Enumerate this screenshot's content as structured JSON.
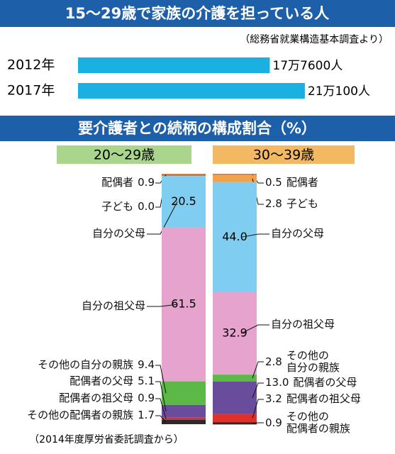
{
  "chart_data": [
    {
      "type": "bar",
      "orientation": "horizontal",
      "title": "15〜29歳で家族の介護を担っている人",
      "subtitle": "（総務省就業構造基本調査より）",
      "categories": [
        "2012年",
        "2017年"
      ],
      "values": [
        177600,
        210100
      ],
      "value_labels": [
        "17万7600人",
        "21万100人"
      ],
      "color": "#1ab0e0",
      "xlim": [
        0,
        220000
      ]
    },
    {
      "type": "stacked_bar",
      "title": "要介護者との続柄の構成割合（%）",
      "categories": [
        "20〜29歳",
        "30〜39歳"
      ],
      "category_colors": [
        "#a9d58c",
        "#f3b862"
      ],
      "ylim": [
        0,
        100
      ],
      "series": [
        {
          "name": "配偶者",
          "color": "#e8731e",
          "values": [
            0.9,
            0.5
          ],
          "value_labels": [
            "0.9",
            "0.5"
          ]
        },
        {
          "name": "子ども",
          "color": "#f2a24a",
          "values": [
            0.0,
            2.8
          ],
          "value_labels": [
            "0.0",
            "2.8"
          ]
        },
        {
          "name": "自分の父母",
          "color": "#7fcdf0",
          "values": [
            20.5,
            44.0
          ],
          "value_labels": [
            "20.5",
            "44.0"
          ]
        },
        {
          "name": "自分の祖父母",
          "color": "#e5a3cd",
          "values": [
            61.5,
            32.9
          ],
          "value_labels": [
            "61.5",
            "32.9"
          ]
        },
        {
          "name": "その他の自分の親族",
          "color": "#5cb947",
          "values": [
            9.4,
            2.8
          ],
          "value_labels": [
            "9.4",
            "2.8"
          ]
        },
        {
          "name": "配偶者の父母",
          "color": "#6a4c9c",
          "values": [
            5.1,
            13.0
          ],
          "value_labels": [
            "5.1",
            "13.0"
          ]
        },
        {
          "name": "配偶者の祖父母",
          "color": "#e0302a",
          "values": [
            0.9,
            3.2
          ],
          "value_labels": [
            "0.9",
            "3.2"
          ]
        },
        {
          "name": "その他の配偶者の親族",
          "color": "#2a2a2a",
          "values": [
            1.7,
            0.9
          ],
          "value_labels": [
            "1.7",
            "0.9"
          ]
        }
      ],
      "right_labels": [
        "配偶者",
        "子ども",
        "自分の父母",
        "自分の祖父母",
        "その他の\n自分の親族",
        "配偶者の父母",
        "配偶者の祖父母",
        "その他の\n配偶者の親族"
      ],
      "note": "（2014年度厚労省委託調査から）"
    }
  ]
}
